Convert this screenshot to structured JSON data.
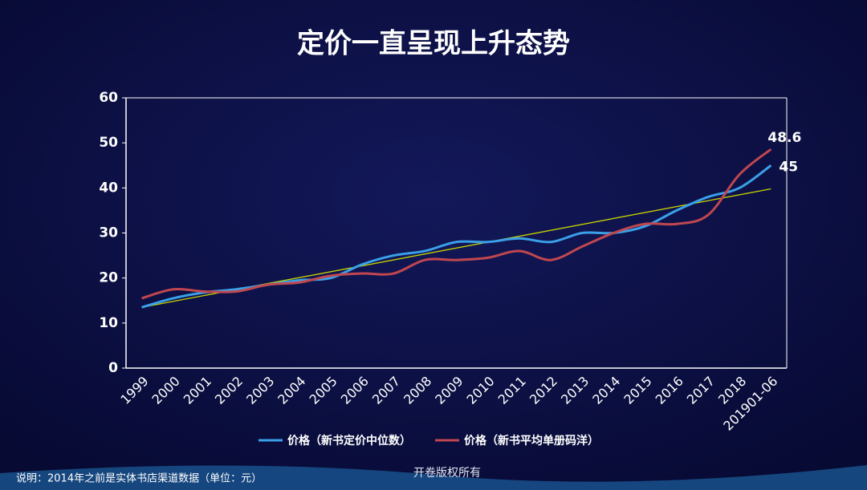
{
  "chart_data": {
    "type": "line",
    "title": "定价一直呈现上升态势",
    "categories": [
      "1999",
      "2000",
      "2001",
      "2002",
      "2003",
      "2004",
      "2005",
      "2006",
      "2007",
      "2008",
      "2009",
      "2010",
      "2011",
      "2012",
      "2013",
      "2014",
      "2015",
      "2016",
      "2017",
      "2018",
      "201901-06"
    ],
    "series": [
      {
        "name": "价格（新书定价中位数）",
        "color": "#3aa0e8",
        "values": [
          13.5,
          15.5,
          16.8,
          17.5,
          18.5,
          19.5,
          20,
          23,
          25,
          26,
          28,
          28,
          28.8,
          28,
          30,
          30,
          31.5,
          35,
          38,
          40,
          45
        ]
      },
      {
        "name": "价格（新书平均单册码洋）",
        "color": "#c0474f",
        "values": [
          15.5,
          17.5,
          17,
          17,
          18.5,
          19,
          20.5,
          21,
          21,
          24,
          24,
          24.5,
          26,
          24,
          27,
          30,
          32,
          32,
          34,
          43,
          48.6
        ]
      }
    ],
    "trendline": {
      "color": "#c8d400",
      "start": 13.5,
      "end": 39.8
    },
    "ylim": [
      0,
      60
    ],
    "yticks": [
      0,
      10,
      20,
      30,
      40,
      50,
      60
    ],
    "note": "说明：2014年之前是实体书店渠道数据（单位：元）",
    "watermark": "开卷版权所有"
  }
}
